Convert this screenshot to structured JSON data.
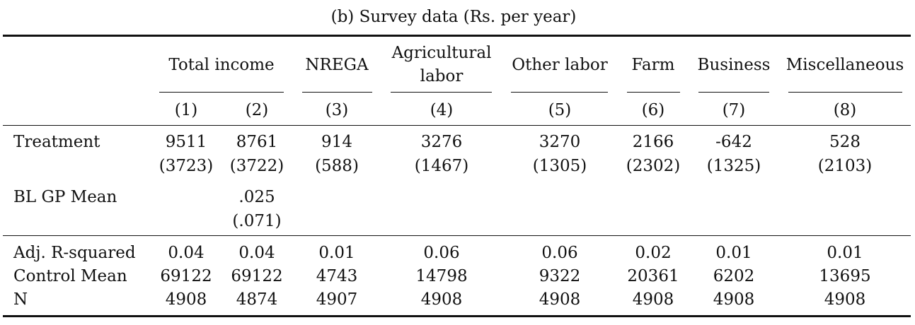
{
  "caption": "(b) Survey data (Rs. per year)",
  "groups": {
    "total_income": "Total income",
    "nrega": "NREGA",
    "agri_line1": "Agricultural",
    "agri_line2": "labor",
    "other_labor": "Other labor",
    "farm": "Farm",
    "business": "Business",
    "misc": "Miscellaneous"
  },
  "col_numbers": [
    "(1)",
    "(2)",
    "(3)",
    "(4)",
    "(5)",
    "(6)",
    "(7)",
    "(8)"
  ],
  "rows": {
    "treatment": {
      "label": "Treatment",
      "coef": [
        "9511",
        "8761",
        "914",
        "3276",
        "3270",
        "2166",
        "-642",
        "528"
      ],
      "se": [
        "(3723)",
        "(3722)",
        "(588)",
        "(1467)",
        "(1305)",
        "(2302)",
        "(1325)",
        "(2103)"
      ]
    },
    "bl_gp_mean": {
      "label": "BL GP Mean",
      "coef2": ".025",
      "se2": "(.071)"
    }
  },
  "stats": {
    "adj_r2": {
      "label": "Adj. R-squared",
      "values": [
        "0.04",
        "0.04",
        "0.01",
        "0.06",
        "0.06",
        "0.02",
        "0.01",
        "0.01"
      ]
    },
    "control_mean": {
      "label": "Control Mean",
      "values": [
        "69122",
        "69122",
        "4743",
        "14798",
        "9322",
        "20361",
        "6202",
        "13695"
      ]
    },
    "n": {
      "label": "N",
      "values": [
        "4908",
        "4874",
        "4907",
        "4908",
        "4908",
        "4908",
        "4908",
        "4908"
      ]
    }
  }
}
